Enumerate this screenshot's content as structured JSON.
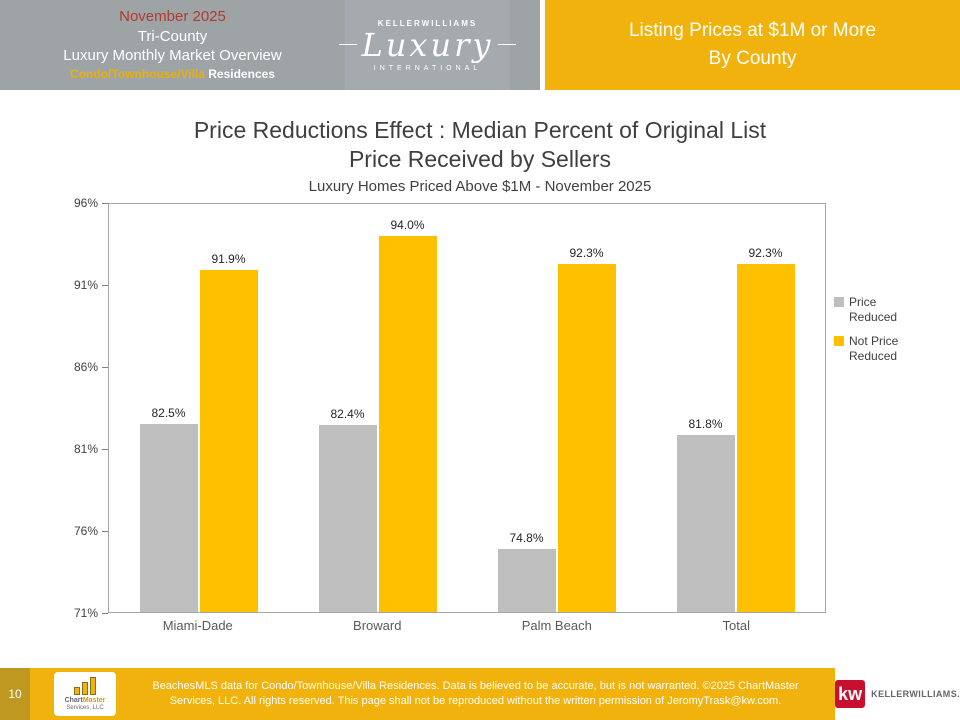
{
  "header": {
    "left": {
      "line1": "November 2025",
      "line2": "Tri-County",
      "line3": "Luxury Monthly Market Overview",
      "line4_highlight": "Condo/Townhouse/Villa",
      "line4_rest": " Residences"
    },
    "logo": {
      "top": "KELLERWILLIAMS",
      "script": "Luxury",
      "bottom": "INTERNATIONAL"
    },
    "banner": {
      "line1": "Listing Prices at $1M or More",
      "line2": "By County"
    }
  },
  "chart_data": {
    "type": "bar",
    "title": "Price Reductions Effect : Median Percent of Original List Price Received by Sellers",
    "subtitle": "Luxury Homes Priced Above $1M - November 2025",
    "categories": [
      "Miami-Dade",
      "Broward",
      "Palm Beach",
      "Total"
    ],
    "series": [
      {
        "name": "Price Reduced",
        "color": "#BFBFBF",
        "values": [
          82.5,
          82.4,
          74.8,
          81.8
        ]
      },
      {
        "name": "Not Price Reduced",
        "color": "#FFC000",
        "values": [
          91.9,
          94.0,
          92.3,
          92.3
        ]
      }
    ],
    "ylim": [
      71,
      96
    ],
    "yticks": [
      "71%",
      "76%",
      "81%",
      "86%",
      "91%",
      "96%"
    ],
    "grid": false,
    "legend_position": "right",
    "value_suffix": "%"
  },
  "footer": {
    "page_number": "10",
    "disclaimer_line1": "BeachesMLS data for Condo/Townhouse/Villa Residences.  Data is believed to be accurate, but is not warranted.   ©2025  ChartMaster",
    "disclaimer_line2": "Services, LLC.  All rights reserved. This page shall not be reproduced without the written permission of JeromyTrask@kw.com.",
    "chartmaster": {
      "name_part1": "Chart",
      "name_part2": "Master",
      "subtext": "Services, LLC"
    },
    "kw": {
      "box": "kw",
      "wordmark": "KELLERWILLIAMS."
    }
  },
  "colors": {
    "gold": "#F2B20D",
    "bar_gold": "#FFC000",
    "bar_gray": "#BFBFBF",
    "banner_gray": "#9EA3A6",
    "accent_red": "#B03C2E",
    "kw_red": "#C8102E",
    "page_block_gold": "#BE9821"
  }
}
